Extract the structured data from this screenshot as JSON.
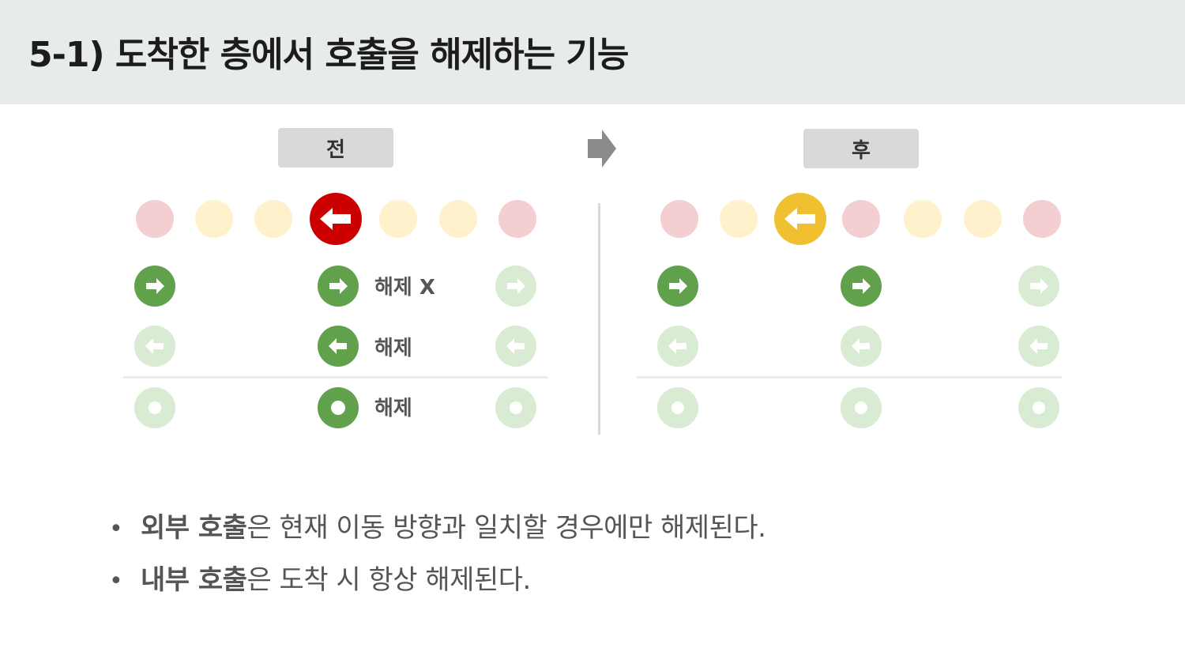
{
  "title": "5-1) 도착한 층에서 호출을 해제하는 기능",
  "before": {
    "tag": "전",
    "labels": {
      "up_row": "해제 X",
      "down_row": "해제",
      "internal_row": "해제"
    }
  },
  "after": {
    "tag": "후"
  },
  "colors": {
    "current_before": "#cc0000",
    "current_after": "#f0c030",
    "button_active": "#62a14b",
    "button_inactive": "#d9ebd3",
    "floor_red": "#f3cfd1",
    "floor_yellow": "#fef1cc"
  },
  "bullets": [
    {
      "bold": "외부 호출",
      "rest": "은 현재 이동 방향과 일치할 경우에만 해제된다."
    },
    {
      "bold": "내부 호출",
      "rest": "은 도착 시 항상 해제된다."
    }
  ],
  "icons": {
    "flow": "right-arrow-icon",
    "current_floor": "left-arrow-icon",
    "up_button": "right-arrow-icon",
    "down_button": "left-arrow-icon",
    "internal_button": "dot-icon"
  }
}
